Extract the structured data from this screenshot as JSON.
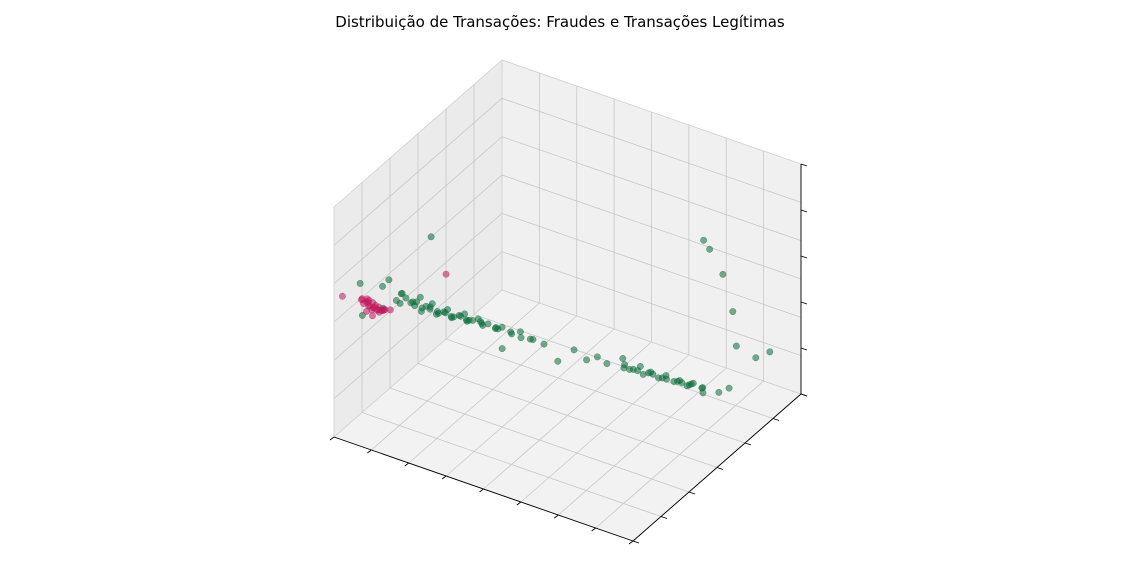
{
  "chart_data": {
    "type": "scatter",
    "projection": "3d",
    "title": "Distribuição de Transações: Fraudes e Transações Legítimas",
    "xlabel": "",
    "ylabel": "",
    "zlabel": "",
    "tick_labels_visible": false,
    "grid": true,
    "legend": "none",
    "colors": {
      "fraud": "#c2185b",
      "legit": "#0a6b3a",
      "pane": "#f2f2f2",
      "grid": "#c8c8c8"
    },
    "series": [
      {
        "id": "legit",
        "color": "#0a6b3a",
        "points": [
          [
            0.05,
            0.2,
            0.55
          ],
          [
            0.08,
            0.15,
            0.5
          ],
          [
            0.06,
            0.22,
            0.57
          ],
          [
            0.1,
            0.25,
            0.49
          ],
          [
            0.12,
            0.18,
            0.52
          ],
          [
            0.14,
            0.22,
            0.51
          ],
          [
            0.16,
            0.24,
            0.48
          ],
          [
            0.18,
            0.2,
            0.5
          ],
          [
            0.2,
            0.26,
            0.47
          ],
          [
            0.22,
            0.23,
            0.49
          ],
          [
            0.24,
            0.27,
            0.46
          ],
          [
            0.26,
            0.25,
            0.48
          ],
          [
            0.28,
            0.29,
            0.45
          ],
          [
            0.3,
            0.27,
            0.47
          ],
          [
            0.32,
            0.31,
            0.44
          ],
          [
            0.34,
            0.28,
            0.46
          ],
          [
            0.36,
            0.32,
            0.43
          ],
          [
            0.38,
            0.3,
            0.45
          ],
          [
            0.4,
            0.34,
            0.42
          ],
          [
            0.42,
            0.31,
            0.44
          ],
          [
            0.15,
            0.19,
            0.53
          ],
          [
            0.17,
            0.27,
            0.47
          ],
          [
            0.19,
            0.21,
            0.52
          ],
          [
            0.21,
            0.28,
            0.46
          ],
          [
            0.23,
            0.2,
            0.51
          ],
          [
            0.25,
            0.3,
            0.45
          ],
          [
            0.27,
            0.22,
            0.5
          ],
          [
            0.29,
            0.31,
            0.44
          ],
          [
            0.31,
            0.24,
            0.49
          ],
          [
            0.33,
            0.33,
            0.43
          ],
          [
            0.13,
            0.26,
            0.48
          ],
          [
            0.11,
            0.21,
            0.54
          ],
          [
            0.09,
            0.24,
            0.51
          ],
          [
            0.18,
            0.16,
            0.55
          ],
          [
            0.22,
            0.18,
            0.54
          ],
          [
            0.26,
            0.2,
            0.53
          ],
          [
            0.3,
            0.22,
            0.52
          ],
          [
            0.35,
            0.25,
            0.5
          ],
          [
            0.39,
            0.27,
            0.48
          ],
          [
            0.44,
            0.33,
            0.42
          ],
          [
            0.46,
            0.35,
            0.41
          ],
          [
            0.48,
            0.33,
            0.43
          ],
          [
            0.5,
            0.36,
            0.4
          ],
          [
            0.36,
            0.36,
            0.41
          ],
          [
            0.41,
            0.38,
            0.4
          ],
          [
            0.2,
            0.32,
            0.44
          ],
          [
            0.24,
            0.35,
            0.42
          ],
          [
            0.28,
            0.36,
            0.41
          ],
          [
            0.16,
            0.3,
            0.46
          ],
          [
            0.12,
            0.3,
            0.47
          ],
          [
            0.7,
            0.48,
            0.31
          ],
          [
            0.72,
            0.5,
            0.3
          ],
          [
            0.74,
            0.49,
            0.31
          ],
          [
            0.76,
            0.52,
            0.29
          ],
          [
            0.78,
            0.51,
            0.3
          ],
          [
            0.8,
            0.53,
            0.28
          ],
          [
            0.82,
            0.52,
            0.29
          ],
          [
            0.84,
            0.55,
            0.27
          ],
          [
            0.86,
            0.54,
            0.28
          ],
          [
            0.88,
            0.56,
            0.27
          ],
          [
            0.73,
            0.46,
            0.33
          ],
          [
            0.77,
            0.47,
            0.32
          ],
          [
            0.81,
            0.49,
            0.31
          ],
          [
            0.85,
            0.51,
            0.3
          ],
          [
            0.89,
            0.53,
            0.29
          ],
          [
            0.75,
            0.55,
            0.27
          ],
          [
            0.79,
            0.57,
            0.26
          ],
          [
            0.83,
            0.58,
            0.25
          ],
          [
            0.87,
            0.59,
            0.25
          ],
          [
            0.91,
            0.57,
            0.26
          ],
          [
            0.68,
            0.52,
            0.29
          ],
          [
            0.71,
            0.56,
            0.27
          ],
          [
            0.9,
            0.5,
            0.31
          ],
          [
            0.93,
            0.54,
            0.29
          ],
          [
            0.66,
            0.45,
            0.33
          ],
          [
            0.62,
            0.4,
            0.36
          ],
          [
            0.64,
            0.58,
            0.26
          ],
          [
            0.95,
            0.6,
            0.24
          ],
          [
            0.6,
            0.5,
            0.3
          ],
          [
            0.97,
            0.47,
            0.33
          ],
          [
            0.04,
            0.3,
            0.42
          ],
          [
            0.02,
            0.12,
            0.6
          ],
          [
            0.45,
            0.2,
            0.46
          ],
          [
            0.55,
            0.45,
            0.34
          ],
          [
            0.58,
            0.3,
            0.4
          ],
          [
            0.9,
            0.75,
            0.14
          ],
          [
            0.84,
            0.9,
            0.2
          ],
          [
            0.8,
            0.95,
            0.3
          ],
          [
            0.75,
            0.98,
            0.42
          ],
          [
            0.7,
            0.99,
            0.5
          ],
          [
            0.68,
            0.99,
            0.53
          ],
          [
            0.95,
            0.82,
            0.25
          ],
          [
            0.98,
            0.85,
            0.27
          ],
          [
            0.1,
            0.4,
            0.66
          ],
          [
            0.05,
            0.08,
            0.5
          ]
        ]
      },
      {
        "id": "fraud",
        "color": "#c2185b",
        "points": [
          [
            0.02,
            0.14,
            0.5
          ],
          [
            0.03,
            0.16,
            0.48
          ],
          [
            0.04,
            0.13,
            0.52
          ],
          [
            0.05,
            0.15,
            0.49
          ],
          [
            0.06,
            0.17,
            0.47
          ],
          [
            0.03,
            0.18,
            0.46
          ],
          [
            0.04,
            0.12,
            0.53
          ],
          [
            0.06,
            0.14,
            0.51
          ],
          [
            0.07,
            0.16,
            0.48
          ],
          [
            0.02,
            0.17,
            0.47
          ],
          [
            0.05,
            0.18,
            0.45
          ],
          [
            0.03,
            0.11,
            0.54
          ],
          [
            0.07,
            0.13,
            0.5
          ],
          [
            0.04,
            0.19,
            0.45
          ],
          [
            0.06,
            0.19,
            0.46
          ],
          [
            0.01,
            0.15,
            0.51
          ],
          [
            0.08,
            0.15,
            0.49
          ],
          [
            0.05,
            0.12,
            0.54
          ],
          [
            0.02,
            0.19,
            0.44
          ],
          [
            0.07,
            0.18,
            0.47
          ],
          [
            0.04,
            0.16,
            0.5
          ],
          [
            0.06,
            0.16,
            0.49
          ],
          [
            0.03,
            0.14,
            0.47
          ],
          [
            0.05,
            0.14,
            0.46
          ],
          [
            0.01,
            0.18,
            0.49
          ],
          [
            0.02,
            0.3,
            0.37
          ],
          [
            0.0,
            0.05,
            0.58
          ],
          [
            0.15,
            0.4,
            0.52
          ]
        ]
      }
    ]
  }
}
